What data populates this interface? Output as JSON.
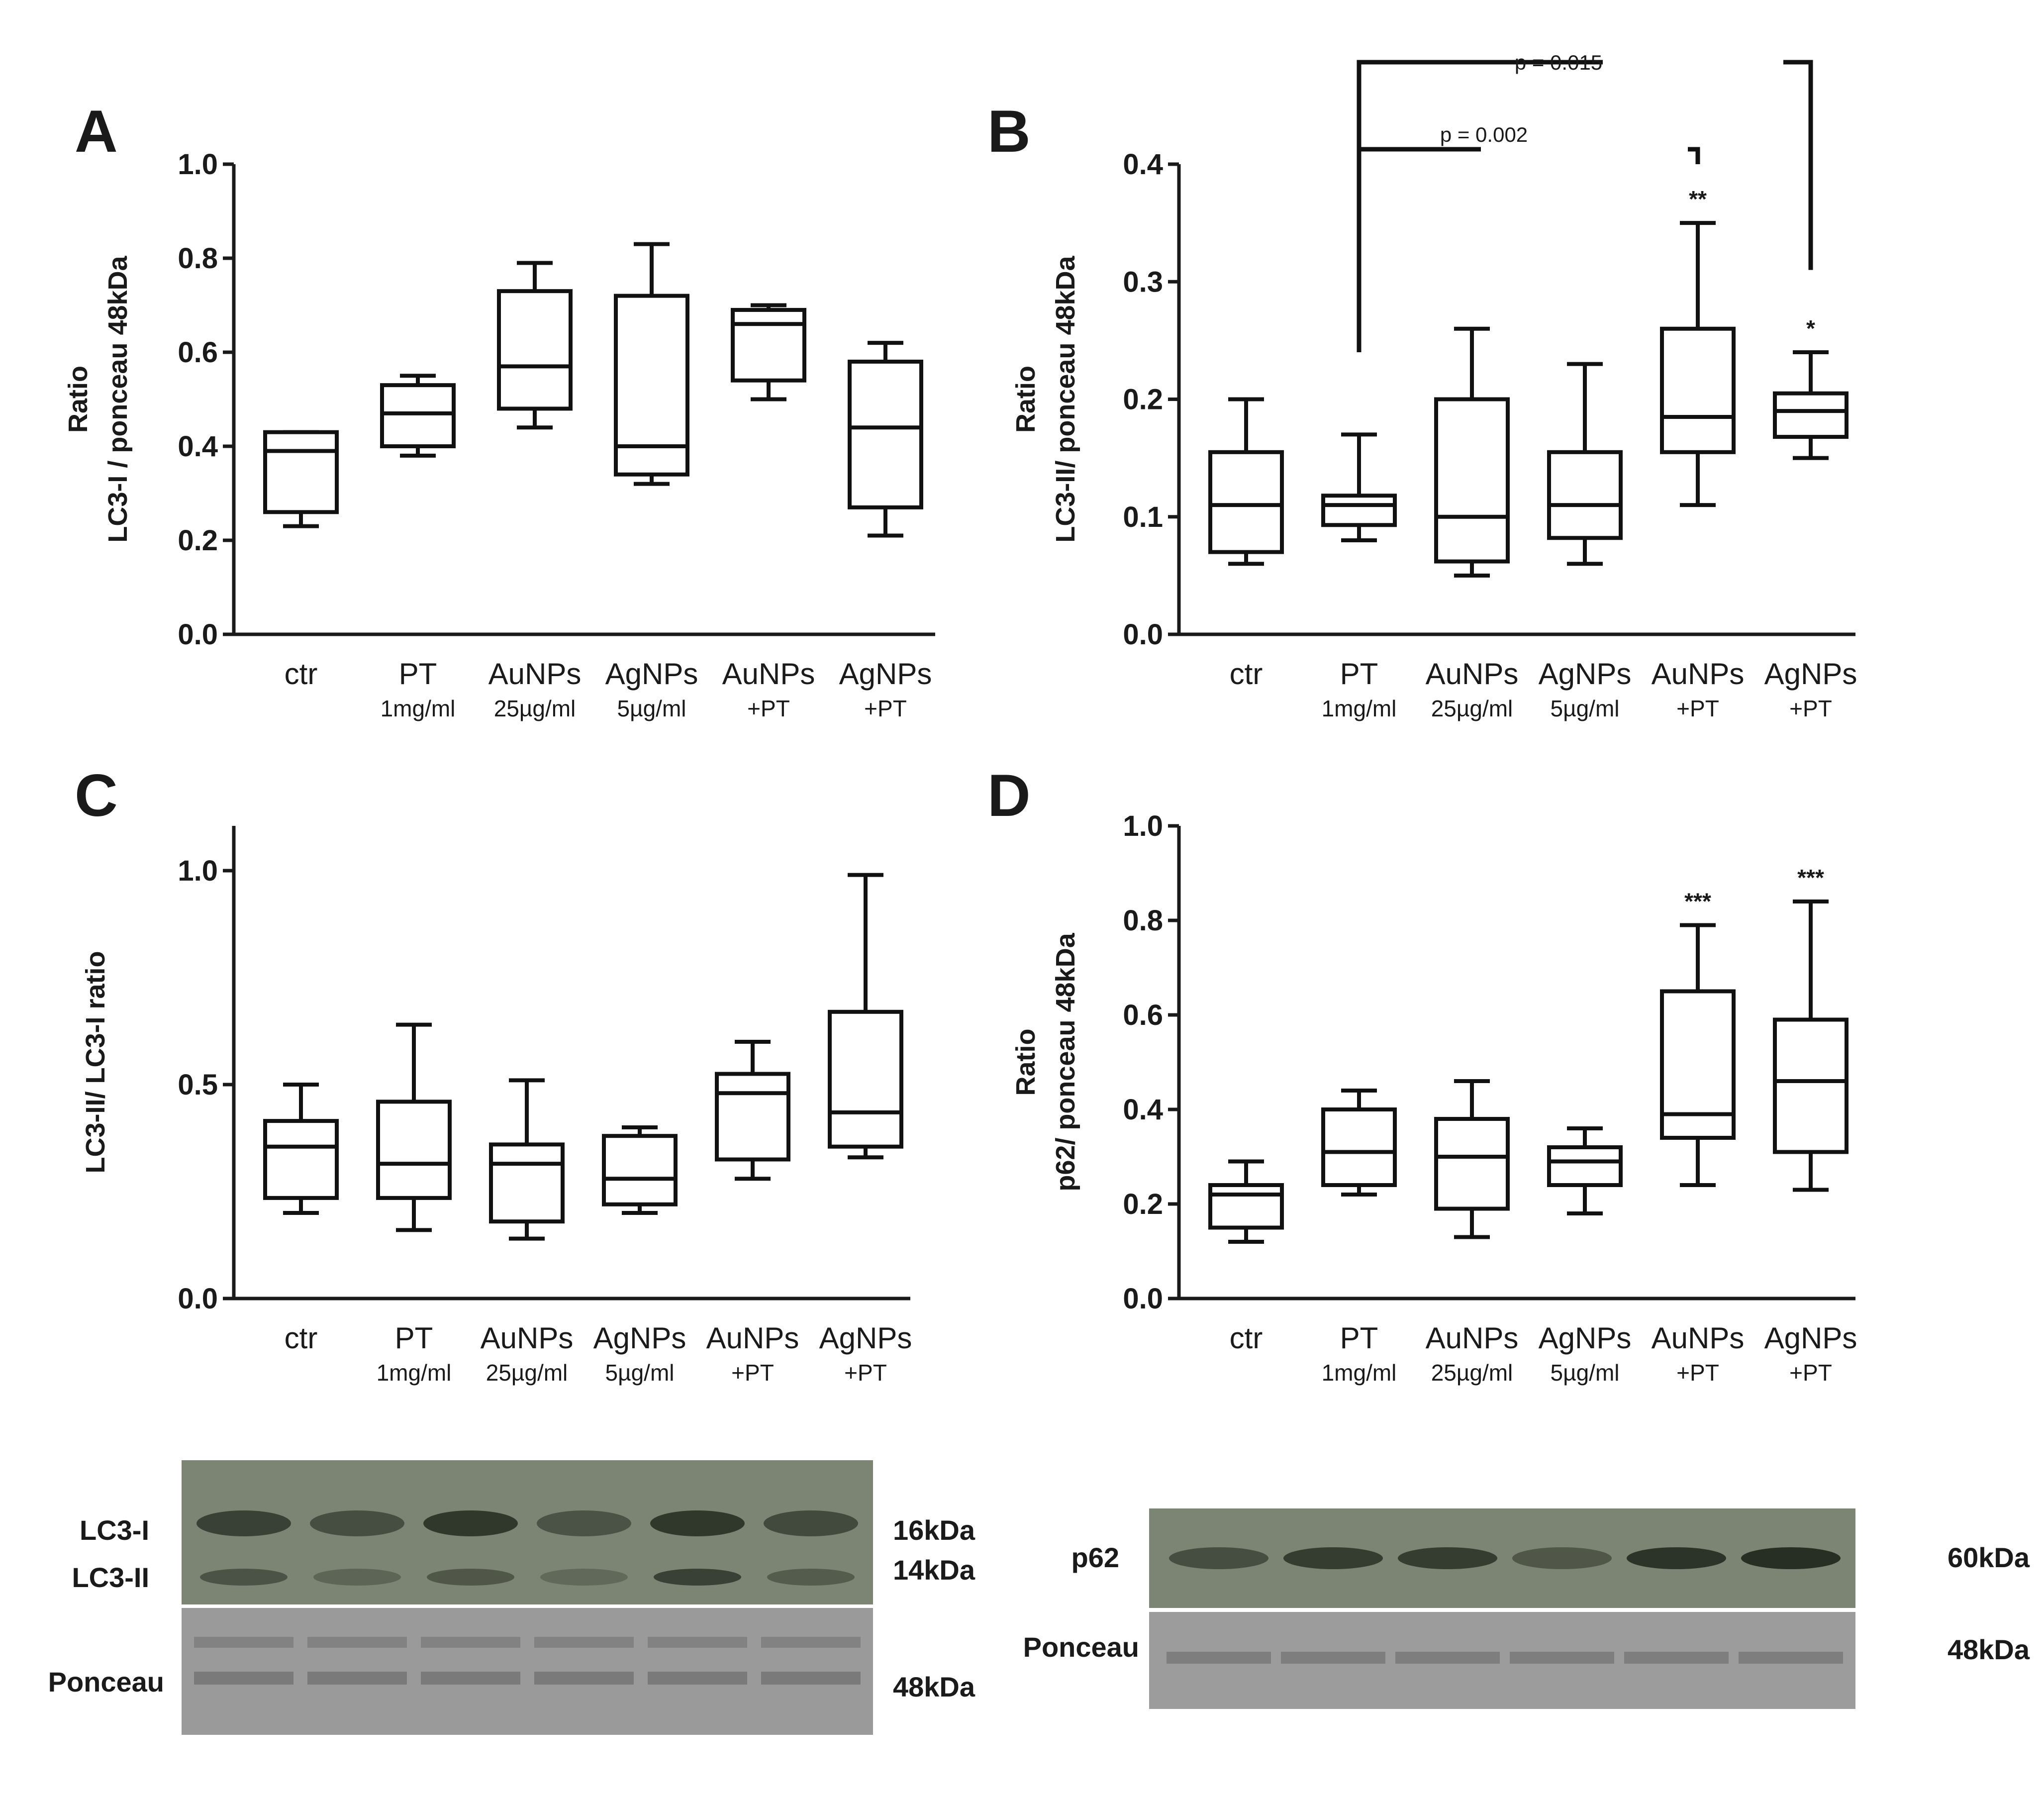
{
  "chart_data": [
    {
      "type": "box",
      "panel": "A",
      "ylabel_line1": "Ratio",
      "ylabel_line2": "LC3-I / ponceau 48kDa",
      "ylim": [
        0,
        1.0
      ],
      "yticks": [
        "0.0",
        "0.2",
        "0.4",
        "0.6",
        "0.8",
        "1.0"
      ],
      "categories": [
        {
          "name": "ctr",
          "sub": ""
        },
        {
          "name": "PT",
          "sub": "1mg/ml"
        },
        {
          "name": "AuNPs",
          "sub": "25µg/ml"
        },
        {
          "name": "AgNPs",
          "sub": "5µg/ml"
        },
        {
          "name": "AuNPs",
          "sub": "+PT"
        },
        {
          "name": "AgNPs",
          "sub": "+PT"
        }
      ],
      "boxes": [
        {
          "min": 0.23,
          "q1": 0.26,
          "median": 0.39,
          "q3": 0.43,
          "max": 0.43
        },
        {
          "min": 0.38,
          "q1": 0.4,
          "median": 0.47,
          "q3": 0.53,
          "max": 0.55
        },
        {
          "min": 0.44,
          "q1": 0.48,
          "median": 0.57,
          "q3": 0.73,
          "max": 0.79
        },
        {
          "min": 0.32,
          "q1": 0.34,
          "median": 0.4,
          "q3": 0.72,
          "max": 0.83
        },
        {
          "min": 0.5,
          "q1": 0.54,
          "median": 0.66,
          "q3": 0.69,
          "max": 0.7
        },
        {
          "min": 0.21,
          "q1": 0.27,
          "median": 0.44,
          "q3": 0.58,
          "max": 0.62
        }
      ],
      "annotations": []
    },
    {
      "type": "box",
      "panel": "B",
      "ylabel_line1": "Ratio",
      "ylabel_line2": "LC3-II/ ponceau 48kDa",
      "ylim": [
        0,
        0.4
      ],
      "yticks": [
        "0.0",
        "0.1",
        "0.2",
        "0.3",
        "0.4"
      ],
      "categories": [
        {
          "name": "ctr",
          "sub": ""
        },
        {
          "name": "PT",
          "sub": "1mg/ml"
        },
        {
          "name": "AuNPs",
          "sub": "25µg/ml"
        },
        {
          "name": "AgNPs",
          "sub": "5µg/ml"
        },
        {
          "name": "AuNPs",
          "sub": "+PT"
        },
        {
          "name": "AgNPs",
          "sub": "+PT"
        }
      ],
      "boxes": [
        {
          "min": 0.06,
          "q1": 0.07,
          "median": 0.11,
          "q3": 0.155,
          "max": 0.2
        },
        {
          "min": 0.08,
          "q1": 0.093,
          "median": 0.11,
          "q3": 0.118,
          "max": 0.17
        },
        {
          "min": 0.05,
          "q1": 0.062,
          "median": 0.1,
          "q3": 0.2,
          "max": 0.26
        },
        {
          "min": 0.06,
          "q1": 0.082,
          "median": 0.11,
          "q3": 0.155,
          "max": 0.23
        },
        {
          "min": 0.11,
          "q1": 0.155,
          "median": 0.185,
          "q3": 0.26,
          "max": 0.35
        },
        {
          "min": 0.15,
          "q1": 0.168,
          "median": 0.19,
          "q3": 0.205,
          "max": 0.24
        }
      ],
      "annotations": [
        "",
        "",
        "",
        "",
        "**",
        "*"
      ],
      "pvalues": [
        "p = 0.015",
        "p = 0.002"
      ]
    },
    {
      "type": "box",
      "panel": "C",
      "ylabel_line1": "",
      "ylabel_line2": "LC3-II/ LC3-I ratio",
      "ylim": [
        0,
        1.1
      ],
      "yticks": [
        "0.0",
        "0.5",
        "1.0"
      ],
      "ytick_values": [
        0,
        0.5,
        1.0
      ],
      "categories": [
        {
          "name": "ctr",
          "sub": ""
        },
        {
          "name": "PT",
          "sub": "1mg/ml"
        },
        {
          "name": "AuNPs",
          "sub": "25µg/ml"
        },
        {
          "name": "AgNPs",
          "sub": "5µg/ml"
        },
        {
          "name": "AuNPs",
          "sub": "+PT"
        },
        {
          "name": "AgNPs",
          "sub": "+PT"
        }
      ],
      "boxes": [
        {
          "min": 0.2,
          "q1": 0.235,
          "median": 0.355,
          "q3": 0.415,
          "max": 0.5
        },
        {
          "min": 0.16,
          "q1": 0.235,
          "median": 0.315,
          "q3": 0.46,
          "max": 0.64
        },
        {
          "min": 0.14,
          "q1": 0.18,
          "median": 0.315,
          "q3": 0.36,
          "max": 0.51
        },
        {
          "min": 0.2,
          "q1": 0.22,
          "median": 0.28,
          "q3": 0.38,
          "max": 0.4
        },
        {
          "min": 0.28,
          "q1": 0.325,
          "median": 0.48,
          "q3": 0.525,
          "max": 0.6
        },
        {
          "min": 0.33,
          "q1": 0.355,
          "median": 0.435,
          "q3": 0.67,
          "max": 0.99
        }
      ],
      "annotations": []
    },
    {
      "type": "box",
      "panel": "D",
      "ylabel_line1": "Ratio",
      "ylabel_line2": "p62/ ponceau 48kDa",
      "ylim": [
        0,
        1.0
      ],
      "yticks": [
        "0.0",
        "0.2",
        "0.4",
        "0.6",
        "0.8",
        "1.0"
      ],
      "categories": [
        {
          "name": "ctr",
          "sub": ""
        },
        {
          "name": "PT",
          "sub": "1mg/ml"
        },
        {
          "name": "AuNPs",
          "sub": "25µg/ml"
        },
        {
          "name": "AgNPs",
          "sub": "5µg/ml"
        },
        {
          "name": "AuNPs",
          "sub": "+PT"
        },
        {
          "name": "AgNPs",
          "sub": "+PT"
        }
      ],
      "boxes": [
        {
          "min": 0.12,
          "q1": 0.15,
          "median": 0.22,
          "q3": 0.24,
          "max": 0.29
        },
        {
          "min": 0.22,
          "q1": 0.24,
          "median": 0.31,
          "q3": 0.4,
          "max": 0.44
        },
        {
          "min": 0.13,
          "q1": 0.19,
          "median": 0.3,
          "q3": 0.38,
          "max": 0.46
        },
        {
          "min": 0.18,
          "q1": 0.24,
          "median": 0.29,
          "q3": 0.32,
          "max": 0.36
        },
        {
          "min": 0.24,
          "q1": 0.34,
          "median": 0.39,
          "q3": 0.65,
          "max": 0.79
        },
        {
          "min": 0.23,
          "q1": 0.31,
          "median": 0.46,
          "q3": 0.59,
          "max": 0.84
        }
      ],
      "annotations": [
        "",
        "",
        "",
        "",
        "***",
        "***"
      ]
    }
  ],
  "blots": {
    "left": {
      "labels": [
        "LC3-I",
        "LC3-II",
        "Ponceau"
      ],
      "sizes": [
        "16kDa",
        "14kDa",
        "48kDa"
      ],
      "band_intensity_lc3i": [
        0.75,
        0.6,
        0.85,
        0.55,
        0.85,
        0.65
      ],
      "band_intensity_lc3ii": [
        0.55,
        0.35,
        0.5,
        0.3,
        0.75,
        0.45
      ],
      "band_color": "#232a20",
      "membrane_color": "#7c8573",
      "ponceau_color": "#9a9a9a"
    },
    "right": {
      "labels": [
        "p62",
        "Ponceau"
      ],
      "sizes": [
        "60kDa",
        "48kDa"
      ],
      "band_intensity_p62": [
        0.6,
        0.8,
        0.8,
        0.5,
        0.9,
        0.95
      ],
      "band_color": "#232a20",
      "membrane_color": "#7c8573",
      "ponceau_color": "#9c9c9c"
    }
  }
}
